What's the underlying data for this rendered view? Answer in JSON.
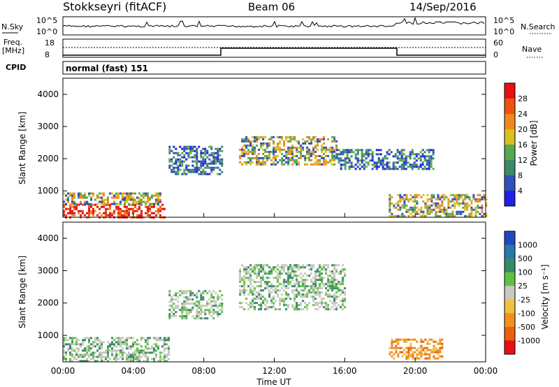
{
  "header": {
    "station": "Stokkseyri (fitACF)",
    "beam": "Beam 06",
    "date": "14/Sep/2016"
  },
  "nsky": {
    "label": "N.Sky",
    "tick_top": "10^5",
    "tick_bottom": "10^0",
    "right_label": "N.Search",
    "right_tick_top": "10^5",
    "right_tick_bottom": "10^0"
  },
  "freq": {
    "label_line1": "Freq.",
    "label_line2": "[MHz]",
    "tick_top": "18",
    "tick_bottom": "8",
    "right_label": "Nave",
    "right_tick_top": "60",
    "right_tick_bottom": "0"
  },
  "cpid": {
    "label": "CPID",
    "text": "normal (fast) 151"
  },
  "axes": {
    "ylabel": "Slant Range [km]",
    "yticks": [
      "1000",
      "2000",
      "3000",
      "4000"
    ],
    "xticks": [
      "00:00",
      "04:00",
      "08:00",
      "12:00",
      "16:00",
      "20:00",
      "00:00"
    ],
    "xlabel": "Time UT"
  },
  "power_scale": {
    "title": "Power [dB]",
    "ticks": [
      "4",
      "8",
      "12",
      "16",
      "20",
      "24",
      "28"
    ],
    "colors": [
      "#2020e8",
      "#3050b8",
      "#3c8868",
      "#58a850",
      "#d8c020",
      "#f08820",
      "#f05010",
      "#e81010"
    ]
  },
  "velocity_scale": {
    "title": "Velocity [m s⁻¹]",
    "ticks": [
      "1000",
      "500",
      "100",
      "25",
      "-25",
      "-100",
      "-500",
      "-1000"
    ],
    "colors": [
      "#2048c0",
      "#2878a8",
      "#38886a",
      "#60c040",
      "#c8c8c0",
      "#f0c040",
      "#f09020",
      "#e86010",
      "#e81010"
    ]
  },
  "chart_data": {
    "type": "heatmap",
    "x_range_hours": [
      0,
      24
    ],
    "y_range_km": [
      180,
      4500
    ],
    "cpid_transitions_hours": [
      9,
      19
    ],
    "power_regions": [
      {
        "t0": 0,
        "t1": 5.8,
        "r0": 200,
        "r1": 600,
        "level": "strong"
      },
      {
        "t0": 0,
        "t1": 5.5,
        "r0": 600,
        "r1": 950,
        "level": "medium"
      },
      {
        "t0": 6,
        "t1": 9,
        "r0": 1500,
        "r1": 2400,
        "level": "weak"
      },
      {
        "t0": 10,
        "t1": 15.5,
        "r0": 1800,
        "r1": 2700,
        "level": "medium"
      },
      {
        "t0": 15.5,
        "t1": 21,
        "r0": 1700,
        "r1": 2300,
        "level": "weak"
      },
      {
        "t0": 18.5,
        "t1": 24,
        "r0": 200,
        "r1": 900,
        "level": "medium"
      }
    ],
    "velocity_regions": [
      {
        "t0": 0,
        "t1": 6,
        "r0": 200,
        "r1": 950,
        "class": "near-zero"
      },
      {
        "t0": 6,
        "t1": 9,
        "r0": 1500,
        "r1": 2400,
        "class": "near-zero"
      },
      {
        "t0": 10,
        "t1": 16,
        "r0": 1800,
        "r1": 3200,
        "class": "near-zero"
      },
      {
        "t0": 18.5,
        "t1": 21.5,
        "r0": 300,
        "r1": 900,
        "class": "negative"
      }
    ]
  }
}
